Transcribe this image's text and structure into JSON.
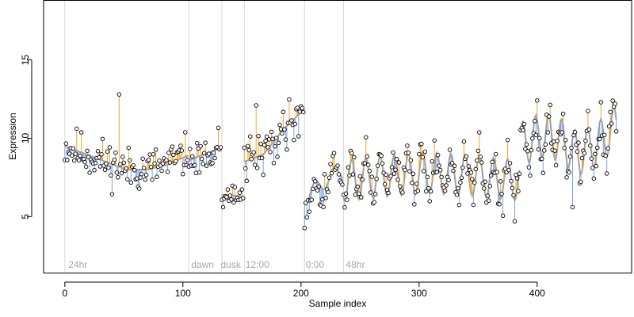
{
  "chart_data": {
    "type": "scatter",
    "title": "",
    "xlabel": "Sample index",
    "ylabel": "Expression",
    "xlim": [
      -18,
      480
    ],
    "ylim": [
      1.4,
      18.8
    ],
    "x_ticks": [
      0,
      100,
      200,
      300,
      400
    ],
    "y_ticks": [
      5,
      10,
      15
    ],
    "grid": false,
    "colors": {
      "trend_line": "#a0a0a0",
      "above_segment": "#f5a623",
      "below_segment": "#7ea3dc",
      "point_stroke": "#000000",
      "point_fill": "#ffffff",
      "separator": "#d8d8d8",
      "annotation": "#a8a8a8"
    },
    "separators": [
      0,
      105,
      133,
      152,
      203,
      236
    ],
    "annotations": [
      {
        "x": 3,
        "text": "24hr"
      },
      {
        "x": 107,
        "text": "dawn"
      },
      {
        "x": 132,
        "text": "dusk"
      },
      {
        "x": 153,
        "text": "12:00"
      },
      {
        "x": 204,
        "text": "0:00"
      },
      {
        "x": 238,
        "text": "48hr"
      }
    ],
    "series": [
      {
        "n": 468,
        "segments": [
          {
            "from": 0,
            "to": 104,
            "y": [
              9.5,
              9.0,
              8.5,
              8.0,
              8.0,
              8.3,
              8.9
            ],
            "wave_amp": 0.0,
            "wave_period": 20,
            "noise": 1.0,
            "seed": 11
          },
          {
            "from": 105,
            "to": 132,
            "y": [
              8.6,
              9.4
            ],
            "wave_amp": 0.0,
            "wave_period": 20,
            "noise": 0.9,
            "seed": 23
          },
          {
            "from": 133,
            "to": 151,
            "y": [
              6.4,
              6.3
            ],
            "wave_amp": 0.0,
            "wave_period": 20,
            "noise": 0.5,
            "seed": 37
          },
          {
            "from": 152,
            "to": 202,
            "y": [
              8.5,
              9.0,
              10.6,
              11.8
            ],
            "wave_amp": 0.0,
            "wave_period": 20,
            "noise": 1.0,
            "seed": 41
          },
          {
            "from": 203,
            "to": 235,
            "y": [
              6.2,
              7.2,
              8.0
            ],
            "wave_amp": 0.5,
            "wave_period": 16,
            "noise": 1.0,
            "seed": 53
          },
          {
            "from": 236,
            "to": 385,
            "y": [
              7.3,
              7.6,
              7.8,
              7.6,
              7.3
            ],
            "wave_amp": 1.3,
            "wave_period": 12,
            "noise": 1.0,
            "seed": 61
          },
          {
            "from": 386,
            "to": 467,
            "y": [
              9.6,
              10.2,
              10.0,
              9.0,
              9.6,
              10.8
            ],
            "wave_amp": 1.4,
            "wave_period": 11,
            "noise": 1.0,
            "seed": 79
          }
        ]
      }
    ],
    "highlight_points": [
      {
        "x": 46,
        "y": 12.8
      },
      {
        "x": 162,
        "y": 12.1
      },
      {
        "x": 381,
        "y": 4.7
      },
      {
        "x": 430,
        "y": 5.6
      },
      {
        "x": 466,
        "y": 12.2
      }
    ]
  }
}
